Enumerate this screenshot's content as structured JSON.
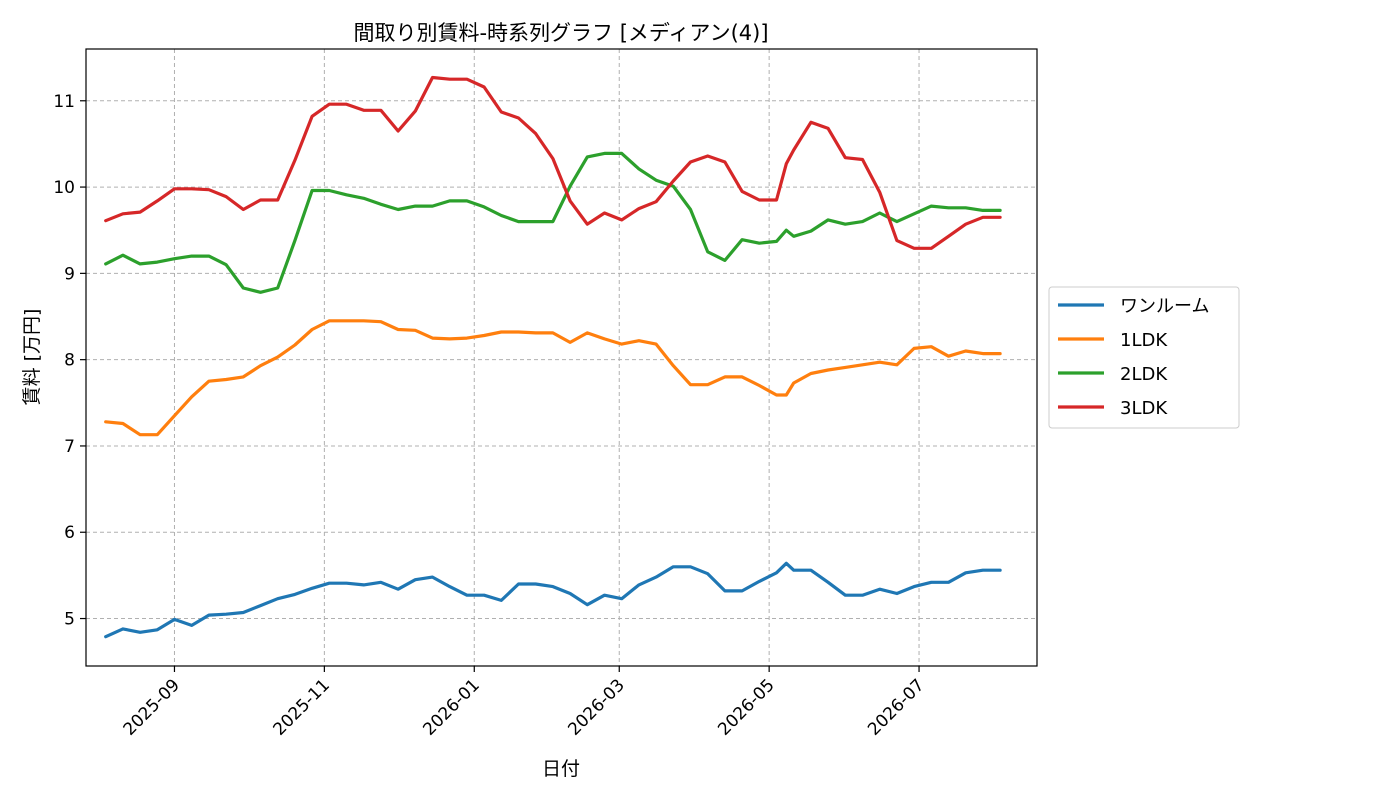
{
  "chart_data": {
    "type": "line",
    "title": "間取り別賃料-時系列グラフ [メディアン(4)]",
    "xlabel": "日付",
    "ylabel": "賃料 [万円]",
    "xlim": [
      "2025-07-27",
      "2026-08-18"
    ],
    "ylim": [
      4.45,
      11.6
    ],
    "x_ticks": [
      "2025-09-01",
      "2025-11-01",
      "2026-01-01",
      "2026-03-01",
      "2026-05-01",
      "2026-07-01"
    ],
    "x_tick_labels": [
      "2025-09",
      "2025-11",
      "2026-01",
      "2026-03",
      "2026-05",
      "2026-07"
    ],
    "y_ticks": [
      5,
      6,
      7,
      8,
      9,
      10,
      11
    ],
    "y_tick_labels": [
      "5",
      "6",
      "7",
      "8",
      "9",
      "10",
      "11"
    ],
    "grid": true,
    "legend_position": "right-outside",
    "x": [
      "2025-08-04",
      "2025-08-11",
      "2025-08-18",
      "2025-08-25",
      "2025-09-01",
      "2025-09-08",
      "2025-09-15",
      "2025-09-22",
      "2025-09-29",
      "2025-10-06",
      "2025-10-13",
      "2025-10-20",
      "2025-10-27",
      "2025-11-03",
      "2025-11-10",
      "2025-11-17",
      "2025-11-24",
      "2025-12-01",
      "2025-12-08",
      "2025-12-15",
      "2025-12-22",
      "2025-12-29",
      "2026-01-05",
      "2026-01-12",
      "2026-01-19",
      "2026-01-26",
      "2026-02-02",
      "2026-02-09",
      "2026-02-16",
      "2026-02-23",
      "2026-03-02",
      "2026-03-09",
      "2026-03-16",
      "2026-03-23",
      "2026-03-30",
      "2026-04-06",
      "2026-04-13",
      "2026-04-20",
      "2026-04-27",
      "2026-05-04",
      "2026-05-08",
      "2026-05-11",
      "2026-05-18",
      "2026-05-25",
      "2026-06-01",
      "2026-06-08",
      "2026-06-15",
      "2026-06-22",
      "2026-06-29",
      "2026-07-06",
      "2026-07-13",
      "2026-07-20",
      "2026-07-27",
      "2026-08-03"
    ],
    "series": [
      {
        "name": "ワンルーム",
        "color": "#1f77b4",
        "values": [
          4.79,
          4.88,
          4.84,
          4.87,
          4.99,
          4.92,
          5.04,
          5.05,
          5.07,
          5.15,
          5.23,
          5.28,
          5.35,
          5.41,
          5.41,
          5.39,
          5.42,
          5.34,
          5.45,
          5.48,
          5.37,
          5.27,
          5.27,
          5.21,
          5.4,
          5.4,
          5.37,
          5.29,
          5.16,
          5.27,
          5.23,
          5.39,
          5.48,
          5.6,
          5.6,
          5.52,
          5.32,
          5.32,
          5.43,
          5.53,
          5.64,
          5.56,
          5.56,
          5.42,
          5.27,
          5.27,
          5.34,
          5.29,
          5.37,
          5.42,
          5.42,
          5.53,
          5.56,
          5.56
        ]
      },
      {
        "name": "1LDK",
        "color": "#ff7f0e",
        "values": [
          7.28,
          7.26,
          7.13,
          7.13,
          7.35,
          7.57,
          7.75,
          7.77,
          7.8,
          7.93,
          8.03,
          8.17,
          8.35,
          8.45,
          8.45,
          8.45,
          8.44,
          8.35,
          8.34,
          8.25,
          8.24,
          8.25,
          8.28,
          8.32,
          8.32,
          8.31,
          8.31,
          8.2,
          8.31,
          8.24,
          8.18,
          8.22,
          8.18,
          7.93,
          7.71,
          7.71,
          7.8,
          7.8,
          7.7,
          7.59,
          7.59,
          7.73,
          7.84,
          7.88,
          7.91,
          7.94,
          7.97,
          7.94,
          8.13,
          8.15,
          8.04,
          8.1,
          8.07,
          8.07
        ]
      },
      {
        "name": "2LDK",
        "color": "#2ca02c",
        "values": [
          9.11,
          9.21,
          9.11,
          9.13,
          9.17,
          9.2,
          9.2,
          9.1,
          8.83,
          8.78,
          8.83,
          9.38,
          9.96,
          9.96,
          9.91,
          9.87,
          9.8,
          9.74,
          9.78,
          9.78,
          9.84,
          9.84,
          9.77,
          9.67,
          9.6,
          9.6,
          9.6,
          10.01,
          10.35,
          10.39,
          10.39,
          10.21,
          10.08,
          10.01,
          9.74,
          9.25,
          9.15,
          9.39,
          9.35,
          9.37,
          9.5,
          9.43,
          9.49,
          9.62,
          9.57,
          9.6,
          9.7,
          9.6,
          9.69,
          9.78,
          9.76,
          9.76,
          9.73,
          9.73
        ]
      },
      {
        "name": "3LDK",
        "color": "#d62728",
        "values": [
          9.61,
          9.69,
          9.71,
          9.84,
          9.98,
          9.98,
          9.97,
          9.89,
          9.74,
          9.85,
          9.85,
          10.31,
          10.82,
          10.96,
          10.96,
          10.89,
          10.89,
          10.65,
          10.88,
          11.27,
          11.25,
          11.25,
          11.16,
          10.87,
          10.8,
          10.62,
          10.33,
          9.84,
          9.57,
          9.7,
          9.62,
          9.75,
          9.83,
          10.07,
          10.29,
          10.36,
          10.29,
          9.95,
          9.85,
          9.85,
          10.27,
          10.43,
          10.75,
          10.68,
          10.34,
          10.32,
          9.94,
          9.38,
          9.29,
          9.29,
          9.43,
          9.57,
          9.65,
          9.65
        ]
      }
    ]
  }
}
